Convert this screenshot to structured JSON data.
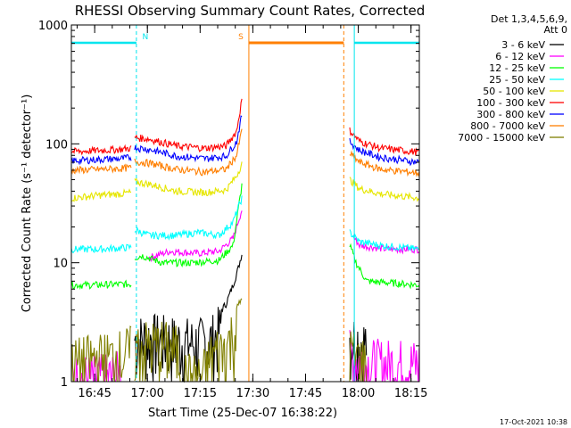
{
  "colors": {
    "background": "#ffffff",
    "axis": "#000000",
    "cyan": "#00e5ee",
    "orange": "#ff7f00"
  },
  "chart_data": {
    "type": "line",
    "title": "RHESSI Observing Summary Count Rates, Corrected",
    "xlabel": "Start Time (25-Dec-07 16:38:22)",
    "ylabel": "Corrected Count Rate (s⁻¹ detector⁻¹)",
    "yscale": "log",
    "ylim": [
      1,
      1000
    ],
    "xlim_minutes_after_start": [
      0,
      99
    ],
    "x_ticks": [
      "16:45",
      "17:00",
      "17:15",
      "17:30",
      "17:45",
      "18:00",
      "18:15"
    ],
    "x_tick_minutes": [
      6.63,
      21.63,
      36.63,
      51.63,
      66.63,
      81.63,
      96.63
    ],
    "y_ticks": [
      "1",
      "10",
      "100",
      "1000"
    ],
    "y_tick_values": [
      1,
      10,
      100,
      1000
    ],
    "legend": {
      "position": "right",
      "header": [
        "Det 1,3,4,5,6,9,",
        "Att 0"
      ],
      "entries": [
        {
          "label": "3 - 6 keV",
          "color": "#000000"
        },
        {
          "label": "6 - 12 keV",
          "color": "#ff00ff"
        },
        {
          "label": "12 - 25 keV",
          "color": "#00ff00"
        },
        {
          "label": "25 - 50 keV",
          "color": "#00ffff"
        },
        {
          "label": "50 - 100 keV",
          "color": "#e6e600"
        },
        {
          "label": "100 - 300 keV",
          "color": "#ff0000"
        },
        {
          "label": "300 - 800 keV",
          "color": "#0000ff"
        },
        {
          "label": "800 - 7000 keV",
          "color": "#ff7f00"
        },
        {
          "label": "7000 - 15000 keV",
          "color": "#808000"
        }
      ]
    },
    "annotations": [
      {
        "label": "N",
        "type": "night",
        "start_min": 0,
        "end_min": 18.5,
        "color": "#00e5ee"
      },
      {
        "label": "",
        "type": "night",
        "start_min": 80.5,
        "end_min": 99,
        "color": "#00e5ee"
      },
      {
        "label": "S",
        "type": "saa",
        "start_min": 50.5,
        "end_min": 77.5,
        "color": "#ff7f00"
      }
    ],
    "gap_minutes": [
      48.8,
      79.0
    ],
    "series": [
      {
        "name": "3 - 6 keV",
        "color": "#000000",
        "segments": [
          [
            [
              18,
              3.2
            ],
            [
              22,
              3.3
            ],
            [
              30,
              3.1
            ],
            [
              36,
              3.0
            ],
            [
              40,
              3.2
            ],
            [
              44,
              4.5
            ],
            [
              46,
              6.5
            ],
            [
              47.5,
              9
            ],
            [
              48.5,
              12
            ]
          ],
          [
            [
              79.2,
              3.4
            ],
            [
              82,
              3.2
            ],
            [
              84,
              3.0
            ]
          ]
        ]
      },
      {
        "name": "6 - 12 keV",
        "color": "#ff00ff",
        "segments": [
          [
            [
              0,
              1.5
            ],
            [
              5,
              1.5
            ],
            [
              10,
              1.5
            ],
            [
              14,
              1.6
            ]
          ],
          [
            [
              22,
              11
            ],
            [
              28,
              12.5
            ],
            [
              36,
              12
            ],
            [
              42,
              12.5
            ],
            [
              46,
              16
            ],
            [
              48.5,
              28
            ]
          ],
          [
            [
              79.2,
              2.4
            ],
            [
              84,
              2.0
            ],
            [
              99,
              2.0
            ]
          ],
          [
            [
              80,
              17
            ],
            [
              82,
              14
            ],
            [
              90,
              13
            ],
            [
              99,
              13
            ]
          ]
        ]
      },
      {
        "name": "12 - 25 keV",
        "color": "#00ff00",
        "segments": [
          [
            [
              0,
              6.5
            ],
            [
              7,
              6.5
            ],
            [
              14,
              6.6
            ],
            [
              17,
              6.6
            ]
          ],
          [
            [
              18,
              11
            ],
            [
              20,
              11.5
            ],
            [
              26,
              10
            ],
            [
              34,
              10
            ],
            [
              42,
              10.5
            ],
            [
              46,
              14
            ],
            [
              48.5,
              45
            ]
          ],
          [
            [
              79.2,
              14
            ],
            [
              81,
              10
            ],
            [
              84,
              7
            ],
            [
              90,
              6.8
            ],
            [
              99,
              6.5
            ]
          ]
        ]
      },
      {
        "name": "25 - 50 keV",
        "color": "#00ffff",
        "segments": [
          [
            [
              0,
              13
            ],
            [
              8,
              13
            ],
            [
              14,
              13.3
            ],
            [
              17,
              13.5
            ]
          ],
          [
            [
              18,
              19
            ],
            [
              22,
              17
            ],
            [
              30,
              17
            ],
            [
              36,
              18
            ],
            [
              42,
              17
            ],
            [
              46,
              22
            ],
            [
              48.5,
              35
            ]
          ],
          [
            [
              79.2,
              18
            ],
            [
              82,
              15
            ],
            [
              88,
              14
            ],
            [
              99,
              13
            ]
          ]
        ]
      },
      {
        "name": "50 - 100 keV",
        "color": "#e6e600",
        "segments": [
          [
            [
              0,
              35
            ],
            [
              8,
              37
            ],
            [
              14,
              38
            ],
            [
              17,
              39
            ]
          ],
          [
            [
              18,
              48
            ],
            [
              22,
              46
            ],
            [
              30,
              40
            ],
            [
              38,
              39
            ],
            [
              44,
              41
            ],
            [
              47,
              54
            ],
            [
              48.5,
              68
            ]
          ],
          [
            [
              79.2,
              50
            ],
            [
              82,
              42
            ],
            [
              88,
              38
            ],
            [
              99,
              35
            ]
          ]
        ]
      },
      {
        "name": "100 - 300 keV",
        "color": "#ff0000",
        "segments": [
          [
            [
              0,
              86
            ],
            [
              8,
              88
            ],
            [
              14,
              90
            ],
            [
              17,
              92
            ]
          ],
          [
            [
              18,
              113
            ],
            [
              22,
              110
            ],
            [
              30,
              96
            ],
            [
              38,
              92
            ],
            [
              44,
              96
            ],
            [
              47,
              128
            ],
            [
              48.5,
              235
            ]
          ],
          [
            [
              79.2,
              130
            ],
            [
              82,
              105
            ],
            [
              88,
              92
            ],
            [
              99,
              85
            ]
          ]
        ]
      },
      {
        "name": "300 - 800 keV",
        "color": "#0000ff",
        "segments": [
          [
            [
              0,
              72
            ],
            [
              8,
              74
            ],
            [
              14,
              75
            ],
            [
              17,
              77
            ]
          ],
          [
            [
              18,
              93
            ],
            [
              22,
              90
            ],
            [
              30,
              79
            ],
            [
              38,
              75
            ],
            [
              44,
              79
            ],
            [
              47,
              104
            ],
            [
              48.5,
              175
            ]
          ],
          [
            [
              79.2,
              105
            ],
            [
              82,
              88
            ],
            [
              88,
              77
            ],
            [
              99,
              70
            ]
          ]
        ]
      },
      {
        "name": "800 - 7000 keV",
        "color": "#ff7f00",
        "segments": [
          [
            [
              0,
              60
            ],
            [
              8,
              61
            ],
            [
              14,
              62
            ],
            [
              17,
              63
            ]
          ],
          [
            [
              18,
              71
            ],
            [
              22,
              69
            ],
            [
              30,
              61
            ],
            [
              38,
              58
            ],
            [
              44,
              61
            ],
            [
              47,
              80
            ],
            [
              48.5,
              130
            ]
          ],
          [
            [
              79.2,
              83
            ],
            [
              82,
              70
            ],
            [
              88,
              61
            ],
            [
              99,
              57
            ]
          ]
        ]
      },
      {
        "name": "7000 - 15000 keV",
        "color": "#808000",
        "segments": [
          [
            [
              0,
              2.0
            ],
            [
              6,
              2.2
            ],
            [
              12,
              2.3
            ],
            [
              17,
              2.6
            ]
          ],
          [
            [
              18,
              2.8
            ],
            [
              26,
              2.9
            ],
            [
              30,
              2.6
            ],
            [
              32,
              1.6
            ],
            [
              35,
              1.5
            ],
            [
              38,
              1.7
            ],
            [
              40,
              2.4
            ],
            [
              44,
              2.8
            ],
            [
              46,
              3.6
            ],
            [
              48.5,
              5
            ]
          ],
          [
            [
              79.2,
              2.6
            ],
            [
              82,
              2.2
            ],
            [
              84,
              2.0
            ]
          ]
        ]
      }
    ]
  },
  "footer": {
    "date_stamp": "17-Oct-2021 10:38"
  }
}
